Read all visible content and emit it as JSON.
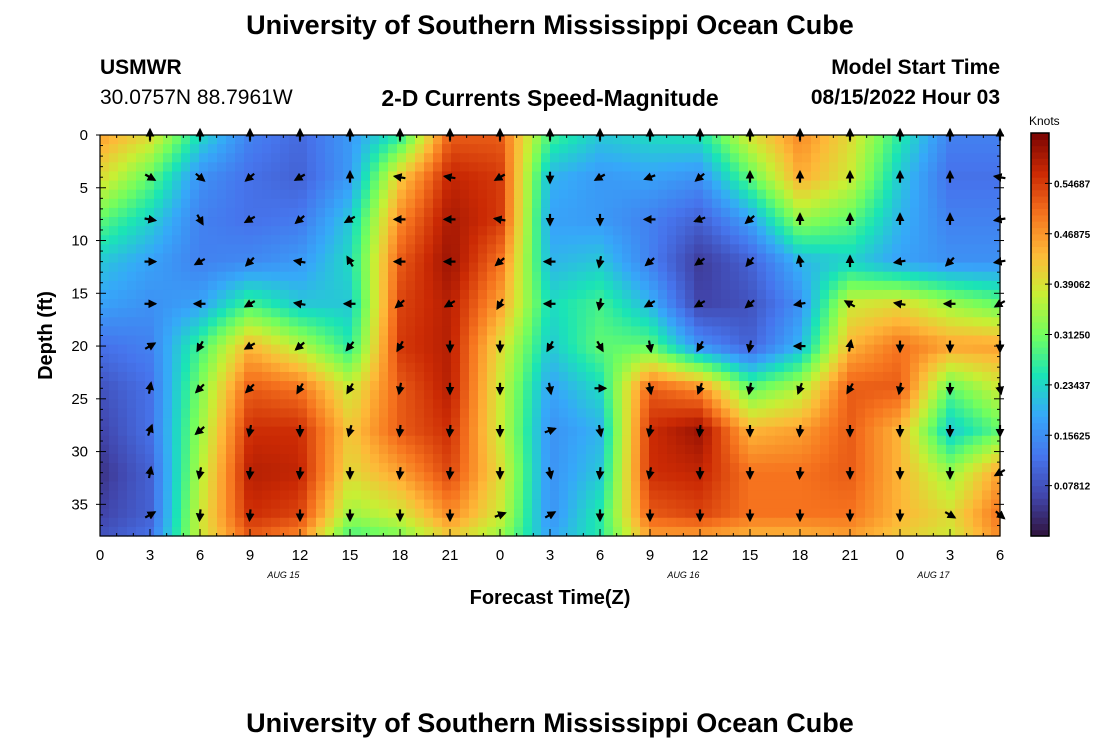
{
  "page": {
    "title": "University of Southern Mississippi Ocean Cube",
    "station": "USMWR",
    "coords": "30.0757N  88.7961W",
    "subtitle": "2-D Currents Speed-Magnitude",
    "model_start_label": "Model Start Time",
    "model_start_value": "08/15/2022 Hour 03",
    "bottom_title": "University of Southern Mississippi Ocean Cube"
  },
  "chart_data": {
    "type": "heatmap",
    "xlabel": "Forecast Time(Z)",
    "ylabel": "Depth (ft)",
    "x_tick_labels": [
      "0",
      "3",
      "6",
      "9",
      "12",
      "15",
      "18",
      "21",
      "0",
      "3",
      "6",
      "9",
      "12",
      "15",
      "18",
      "21",
      "0",
      "3",
      "6"
    ],
    "x_range_hours": [
      0,
      54
    ],
    "date_labels": [
      {
        "label": "AUG 15",
        "hour": 11
      },
      {
        "label": "AUG 16",
        "hour": 35
      },
      {
        "label": "AUG 17",
        "hour": 50
      }
    ],
    "y_tick_labels": [
      "0",
      "5",
      "10",
      "15",
      "20",
      "25",
      "30",
      "35"
    ],
    "y_ticks": [
      0,
      5,
      10,
      15,
      20,
      25,
      30,
      35
    ],
    "ylim": [
      0,
      38
    ],
    "colorbar": {
      "title": "Knots",
      "tick_labels": [
        "0.54687",
        "0.46875",
        "0.39062",
        "0.31250",
        "0.23437",
        "0.15625",
        "0.07812"
      ],
      "tick_values": [
        0.546875,
        0.46875,
        0.390625,
        0.3125,
        0.234375,
        0.15625,
        0.078125
      ],
      "range": [
        0,
        0.625
      ]
    },
    "speed_field": {
      "x_hours": [
        0,
        3,
        6,
        9,
        12,
        15,
        18,
        21,
        24,
        27,
        30,
        33,
        36,
        39,
        42,
        45,
        48,
        51,
        54
      ],
      "depth_ft": [
        0,
        4,
        8,
        12,
        16,
        20,
        24,
        28,
        32,
        36,
        38
      ],
      "knots": [
        [
          0.46,
          0.4,
          0.24,
          0.14,
          0.11,
          0.17,
          0.26,
          0.52,
          0.52,
          0.28,
          0.22,
          0.24,
          0.25,
          0.39,
          0.48,
          0.4,
          0.26,
          0.14,
          0.14
        ],
        [
          0.4,
          0.3,
          0.16,
          0.12,
          0.1,
          0.17,
          0.42,
          0.57,
          0.55,
          0.2,
          0.17,
          0.18,
          0.16,
          0.3,
          0.45,
          0.38,
          0.22,
          0.12,
          0.12
        ],
        [
          0.3,
          0.23,
          0.14,
          0.12,
          0.13,
          0.22,
          0.48,
          0.59,
          0.55,
          0.18,
          0.17,
          0.14,
          0.1,
          0.18,
          0.34,
          0.3,
          0.2,
          0.14,
          0.14
        ],
        [
          0.22,
          0.18,
          0.14,
          0.15,
          0.17,
          0.24,
          0.52,
          0.6,
          0.5,
          0.2,
          0.22,
          0.14,
          0.05,
          0.1,
          0.2,
          0.23,
          0.18,
          0.16,
          0.16
        ],
        [
          0.18,
          0.16,
          0.18,
          0.28,
          0.22,
          0.22,
          0.54,
          0.58,
          0.46,
          0.24,
          0.28,
          0.2,
          0.06,
          0.08,
          0.16,
          0.38,
          0.4,
          0.34,
          0.3
        ],
        [
          0.12,
          0.14,
          0.28,
          0.44,
          0.36,
          0.26,
          0.55,
          0.58,
          0.4,
          0.22,
          0.3,
          0.3,
          0.16,
          0.1,
          0.2,
          0.44,
          0.5,
          0.46,
          0.46
        ],
        [
          0.08,
          0.12,
          0.32,
          0.52,
          0.5,
          0.38,
          0.52,
          0.58,
          0.38,
          0.18,
          0.24,
          0.52,
          0.48,
          0.3,
          0.36,
          0.52,
          0.52,
          0.3,
          0.38
        ],
        [
          0.06,
          0.12,
          0.34,
          0.56,
          0.56,
          0.42,
          0.52,
          0.56,
          0.38,
          0.16,
          0.2,
          0.56,
          0.6,
          0.44,
          0.46,
          0.52,
          0.44,
          0.22,
          0.3
        ],
        [
          0.04,
          0.1,
          0.36,
          0.58,
          0.57,
          0.4,
          0.46,
          0.54,
          0.4,
          0.16,
          0.22,
          0.56,
          0.57,
          0.5,
          0.5,
          0.52,
          0.44,
          0.34,
          0.46
        ],
        [
          0.06,
          0.1,
          0.38,
          0.56,
          0.54,
          0.34,
          0.38,
          0.48,
          0.38,
          0.16,
          0.26,
          0.52,
          0.54,
          0.5,
          0.5,
          0.5,
          0.44,
          0.4,
          0.5
        ],
        [
          0.08,
          0.12,
          0.38,
          0.52,
          0.48,
          0.28,
          0.32,
          0.42,
          0.34,
          0.18,
          0.26,
          0.46,
          0.46,
          0.44,
          0.44,
          0.46,
          0.42,
          0.38,
          0.48
        ]
      ]
    },
    "vectors": {
      "x_hours": [
        3,
        6,
        9,
        12,
        15,
        18,
        21,
        24,
        27,
        30,
        33,
        36,
        39,
        42,
        45,
        48,
        51,
        54
      ],
      "depth_ft": [
        0,
        4,
        8,
        12,
        16,
        20,
        24,
        28,
        32,
        36
      ],
      "angle_deg": [
        [
          90,
          90,
          90,
          90,
          90,
          90,
          90,
          90,
          90,
          90,
          90,
          90,
          90,
          90,
          90,
          90,
          90,
          90
        ],
        [
          -30,
          -40,
          -140,
          -150,
          90,
          170,
          170,
          -150,
          -90,
          -150,
          -160,
          -140,
          90,
          90,
          90,
          90,
          90,
          170
        ],
        [
          -10,
          -60,
          -150,
          -140,
          -150,
          180,
          180,
          170,
          -90,
          -90,
          180,
          -160,
          -140,
          90,
          90,
          90,
          90,
          -170
        ],
        [
          0,
          -150,
          -135,
          170,
          120,
          180,
          180,
          -140,
          180,
          -100,
          -140,
          -145,
          -130,
          100,
          90,
          -170,
          -135,
          -170
        ],
        [
          0,
          180,
          -150,
          170,
          180,
          -140,
          -150,
          -120,
          180,
          -100,
          -150,
          -150,
          -140,
          -170,
          150,
          170,
          180,
          -150
        ],
        [
          30,
          -120,
          -150,
          -140,
          -130,
          -120,
          -90,
          -90,
          -120,
          -60,
          -80,
          -120,
          -100,
          180,
          80,
          -90,
          -90,
          -90
        ],
        [
          80,
          -135,
          -135,
          -120,
          -120,
          -100,
          -90,
          -90,
          -80,
          0,
          -80,
          -110,
          -100,
          -110,
          -120,
          -100,
          -90,
          -80
        ],
        [
          70,
          -140,
          -100,
          -90,
          -105,
          -95,
          -95,
          -90,
          20,
          -80,
          -100,
          -95,
          -90,
          -95,
          -90,
          -90,
          -90,
          -90
        ],
        [
          80,
          -100,
          -95,
          -95,
          -90,
          -95,
          -95,
          -90,
          -80,
          -95,
          -100,
          -90,
          -90,
          -95,
          -90,
          -90,
          -90,
          -150
        ],
        [
          30,
          -95,
          -95,
          -90,
          -90,
          -90,
          -90,
          20,
          30,
          -90,
          -90,
          -90,
          -90,
          -90,
          -90,
          -90,
          -30,
          -40
        ]
      ]
    }
  }
}
